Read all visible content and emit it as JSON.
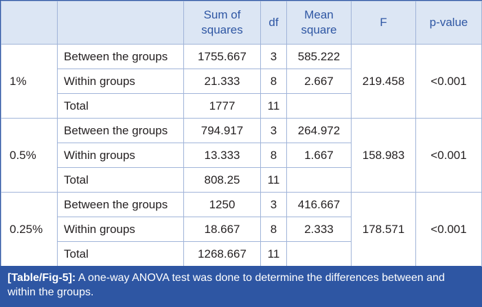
{
  "table": {
    "header": {
      "concentration": "",
      "source": "",
      "sum_of_squares": [
        "Sum of",
        "squares"
      ],
      "df": "df",
      "mean_square": [
        "Mean",
        "square"
      ],
      "f": "F",
      "p_value": "p-value"
    },
    "groups": [
      {
        "concentration": "1%",
        "f": "219.458",
        "p_value": "<0.001",
        "rows": [
          {
            "source": "Between the groups",
            "ss": "1755.667",
            "df": "3",
            "ms": "585.222"
          },
          {
            "source": "Within groups",
            "ss": "21.333",
            "df": "8",
            "ms": "2.667"
          },
          {
            "source": "Total",
            "ss": "1777",
            "df": "11",
            "ms": ""
          }
        ]
      },
      {
        "concentration": "0.5%",
        "f": "158.983",
        "p_value": "<0.001",
        "rows": [
          {
            "source": "Between the groups",
            "ss": "794.917",
            "df": "3",
            "ms": "264.972"
          },
          {
            "source": "Within groups",
            "ss": "13.333",
            "df": "8",
            "ms": "1.667"
          },
          {
            "source": "Total",
            "ss": "808.25",
            "df": "11",
            "ms": ""
          }
        ]
      },
      {
        "concentration": "0.25%",
        "f": "178.571",
        "p_value": "<0.001",
        "rows": [
          {
            "source": "Between the groups",
            "ss": "1250",
            "df": "3",
            "ms": "416.667"
          },
          {
            "source": "Within groups",
            "ss": "18.667",
            "df": "8",
            "ms": "2.333"
          },
          {
            "source": "Total",
            "ss": "1268.667",
            "df": "11",
            "ms": ""
          }
        ]
      }
    ]
  },
  "caption": {
    "label": "[Table/Fig-5]:",
    "text": " A one-way ANOVA test was done to determine the differences between and within the groups."
  },
  "colors": {
    "accent": "#2e56a3",
    "header_bg": "#dce6f4",
    "grid": "#9fb3d8"
  }
}
